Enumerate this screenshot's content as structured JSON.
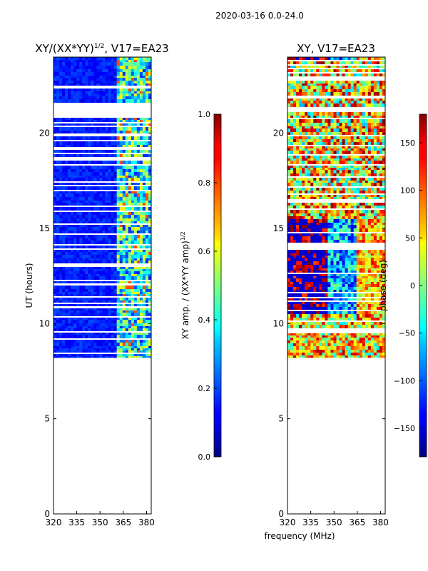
{
  "figure": {
    "suptitle": "2020-03-16 0.0-24.0",
    "xlabel": "frequency (MHz)"
  },
  "chart_data": [
    {
      "type": "heatmap",
      "title": "XY/(XX*YY)",
      "title_exponent": "1/2",
      "title_suffix": ", V17=EA23",
      "ylabel": "UT (hours)",
      "xlim": [
        320,
        383
      ],
      "ylim": [
        0,
        24
      ],
      "xticks": [
        320,
        335,
        350,
        365,
        380
      ],
      "yticks": [
        0,
        5,
        10,
        15,
        20
      ],
      "data_start_hour": 8.2,
      "colorbar": {
        "label": "XY amp. / (XX*YY amp)",
        "label_exponent": "1/2",
        "range": [
          0.0,
          1.0
        ],
        "ticks": [
          "0.0",
          "0.2",
          "0.4",
          "0.6",
          "0.8",
          "1.0"
        ],
        "colormap": "jet"
      }
    },
    {
      "type": "heatmap",
      "title": "XY, V17=EA23",
      "ylabel": "",
      "xlim": [
        320,
        383
      ],
      "ylim": [
        0,
        24
      ],
      "xticks": [
        320,
        335,
        350,
        365,
        380
      ],
      "yticks": [
        0,
        5,
        10,
        15,
        20
      ],
      "data_start_hour": 8.2,
      "colorbar": {
        "label": "phase (deg)",
        "range": [
          -180,
          180
        ],
        "ticks": [
          "−150",
          "−100",
          "−50",
          "0",
          "50",
          "100",
          "150"
        ],
        "colormap": "jet"
      }
    }
  ]
}
